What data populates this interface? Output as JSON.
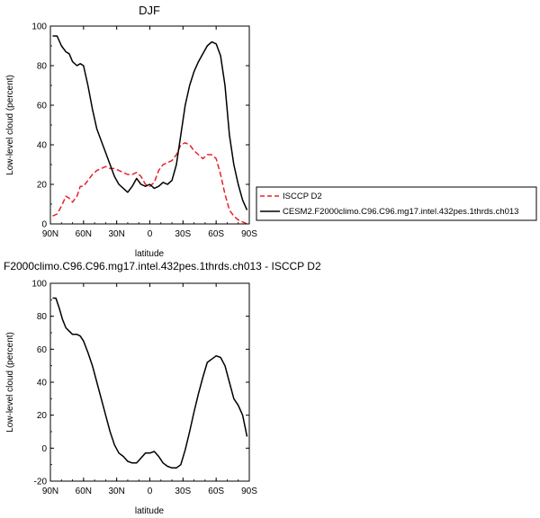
{
  "chart_data": [
    {
      "type": "line",
      "title": "DJF",
      "xlabel": "latitude",
      "ylabel": "Low-level cloud (percent)",
      "x_tick_labels": [
        "90N",
        "60N",
        "30N",
        "0",
        "30S",
        "60S",
        "90S"
      ],
      "y_ticks": [
        0,
        20,
        40,
        60,
        80,
        100
      ],
      "xlim": [
        90,
        -90
      ],
      "ylim": [
        0,
        100
      ],
      "legend_position": "right",
      "series": [
        {
          "name": "ISCCP D2",
          "color": "#e8202a",
          "style": "dashed",
          "x": [
            88,
            84,
            80,
            76,
            73,
            70,
            66,
            63,
            60,
            56,
            52,
            48,
            44,
            40,
            36,
            32,
            28,
            24,
            20,
            16,
            12,
            8,
            4,
            0,
            -4,
            -8,
            -12,
            -16,
            -20,
            -24,
            -28,
            -32,
            -36,
            -40,
            -44,
            -48,
            -52,
            -56,
            -60,
            -64,
            -68,
            -72,
            -76,
            -80,
            -84,
            -88
          ],
          "y": [
            4,
            5,
            9,
            14,
            13,
            11,
            14,
            19,
            19,
            22,
            25,
            27,
            28,
            29,
            28,
            28,
            27,
            26,
            25,
            25,
            26,
            24,
            20,
            19,
            21,
            27,
            30,
            31,
            32,
            35,
            40,
            41,
            40,
            37,
            35,
            33,
            35,
            35,
            33,
            25,
            15,
            7,
            4,
            2,
            1,
            0
          ]
        },
        {
          "name": "CESM2.F2000climo.C96.C96.mg17.intel.432pes.1thrds.ch013",
          "color": "#000000",
          "style": "solid",
          "x": [
            88,
            84,
            80,
            76,
            73,
            70,
            66,
            63,
            60,
            56,
            52,
            48,
            44,
            40,
            36,
            32,
            28,
            24,
            20,
            16,
            12,
            8,
            4,
            0,
            -4,
            -8,
            -12,
            -16,
            -20,
            -24,
            -28,
            -32,
            -36,
            -40,
            -44,
            -48,
            -52,
            -56,
            -60,
            -64,
            -68,
            -72,
            -76,
            -80,
            -84,
            -88
          ],
          "y": [
            95,
            95,
            90,
            87,
            86,
            82,
            80,
            81,
            80,
            70,
            58,
            48,
            42,
            36,
            30,
            24,
            20,
            18,
            16,
            19,
            23,
            20,
            19,
            20,
            18,
            19,
            21,
            20,
            22,
            30,
            45,
            60,
            70,
            77,
            82,
            86,
            90,
            92,
            91,
            85,
            70,
            45,
            30,
            20,
            12,
            7
          ]
        }
      ]
    },
    {
      "type": "line",
      "title": "F2000climo.C96.C96.mg17.intel.432pes.1thrds.ch013 - ISCCP D2",
      "xlabel": "latitude",
      "ylabel": "Low-level cloud (percent)",
      "x_tick_labels": [
        "90N",
        "60N",
        "30N",
        "0",
        "30S",
        "60S",
        "90S"
      ],
      "y_ticks": [
        -20,
        0,
        20,
        40,
        60,
        80,
        100
      ],
      "xlim": [
        90,
        -90
      ],
      "ylim": [
        -20,
        100
      ],
      "series": [
        {
          "color": "#000000",
          "style": "solid",
          "x": [
            88,
            85,
            82,
            79,
            76,
            73,
            70,
            66,
            63,
            60,
            56,
            52,
            48,
            44,
            40,
            36,
            32,
            28,
            24,
            20,
            16,
            12,
            8,
            4,
            0,
            -4,
            -8,
            -12,
            -16,
            -20,
            -24,
            -28,
            -32,
            -36,
            -40,
            -44,
            -48,
            -52,
            -56,
            -60,
            -64,
            -68,
            -72,
            -76,
            -80,
            -84,
            -88
          ],
          "y": [
            91,
            91,
            85,
            78,
            73,
            71,
            69,
            69,
            68,
            65,
            58,
            50,
            40,
            30,
            20,
            10,
            2,
            -3,
            -5,
            -8,
            -9,
            -9,
            -6,
            -3,
            -3,
            -2,
            -5,
            -9,
            -11,
            -12,
            -12,
            -10,
            -1,
            10,
            22,
            33,
            43,
            52,
            54,
            56,
            55,
            50,
            40,
            30,
            26,
            20,
            7
          ]
        }
      ]
    }
  ]
}
